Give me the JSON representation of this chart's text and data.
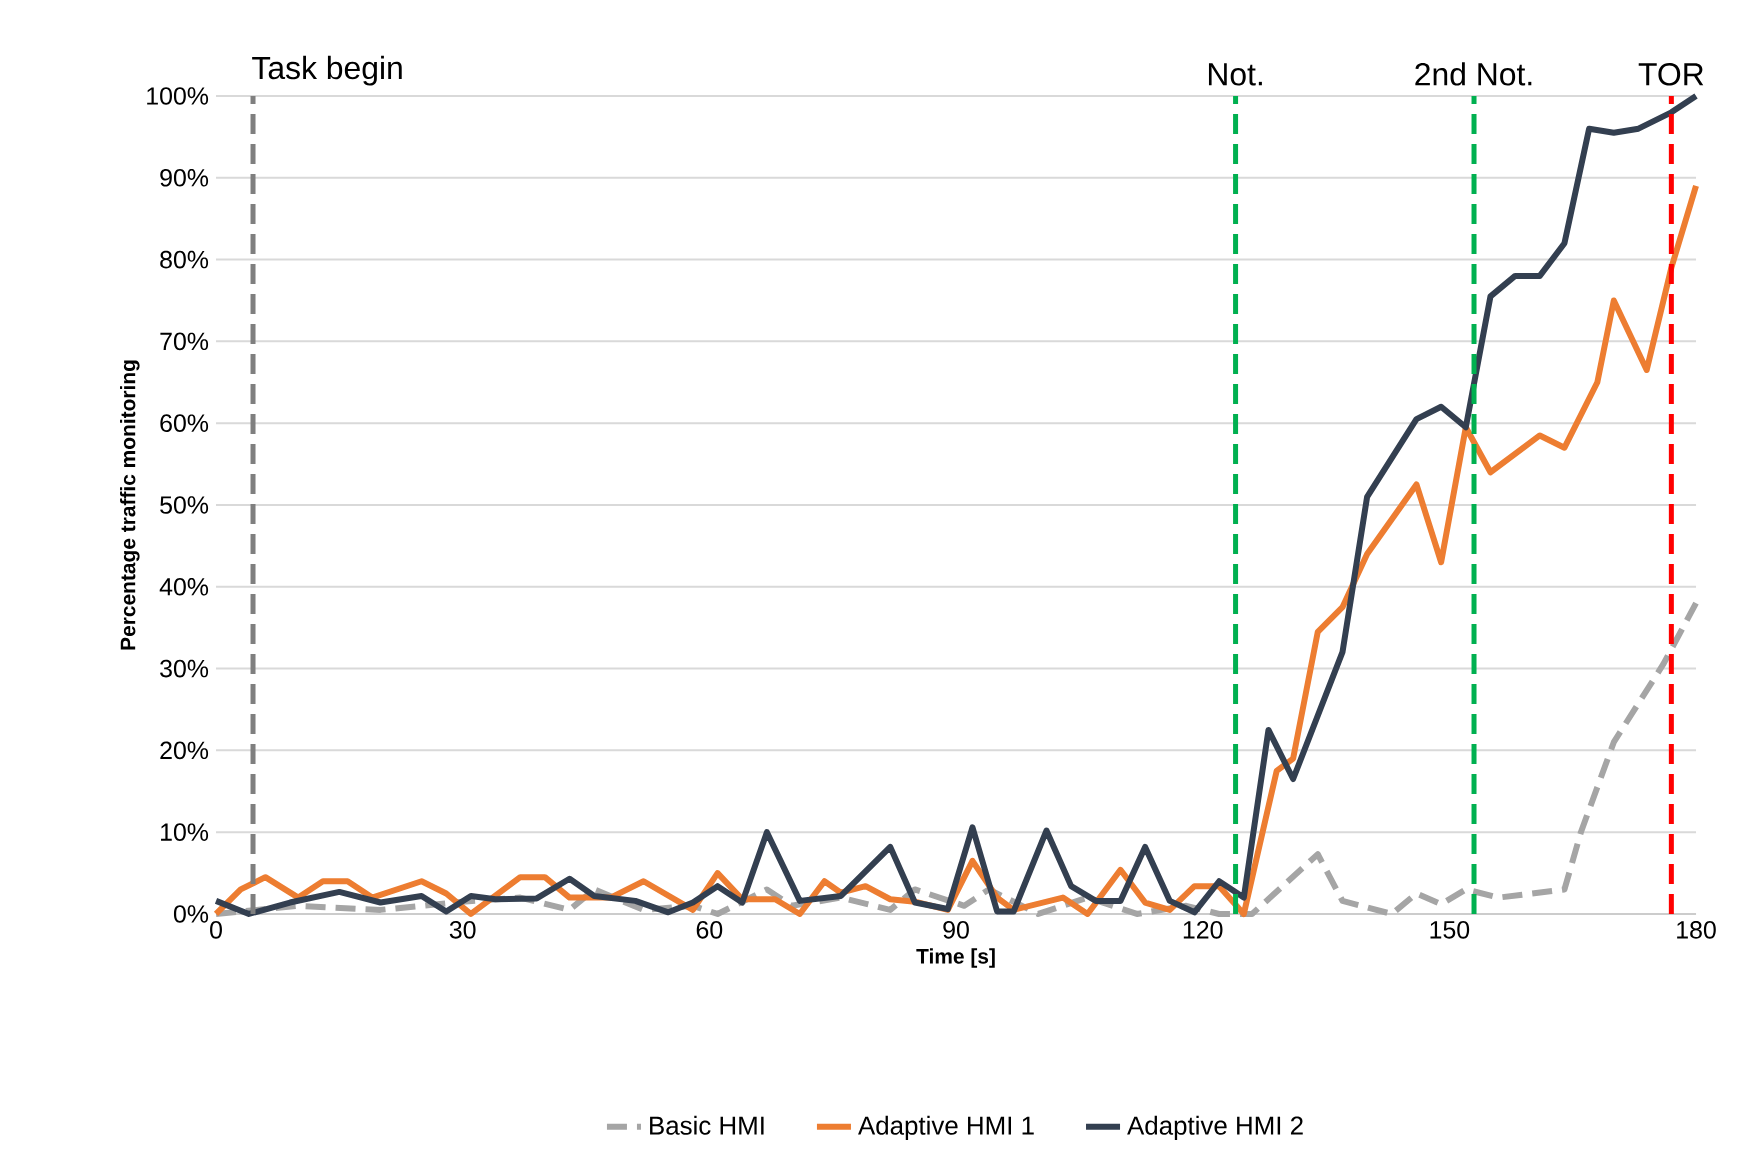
{
  "chart_data": {
    "type": "line",
    "xlabel": "Time [s]",
    "ylabel": "Percentage traffic monitoring",
    "xlim": [
      0,
      180
    ],
    "xticks": [
      0,
      30,
      60,
      90,
      120,
      150,
      180
    ],
    "ylim": [
      0,
      100
    ],
    "yticks": [
      {
        "value": 0,
        "label": "0%"
      },
      {
        "value": 10,
        "label": "10%"
      },
      {
        "value": 20,
        "label": "20%"
      },
      {
        "value": 30,
        "label": "30%"
      },
      {
        "value": 40,
        "label": "40%"
      },
      {
        "value": 50,
        "label": "50%"
      },
      {
        "value": 60,
        "label": "60%"
      },
      {
        "value": 70,
        "label": "70%"
      },
      {
        "value": 80,
        "label": "80%"
      },
      {
        "value": 90,
        "label": "90%"
      },
      {
        "value": 100,
        "label": "100%"
      }
    ],
    "grid": "y",
    "legend": "bottom",
    "ref_lines": [
      {
        "axis": "x",
        "value": 4.5,
        "label": "Task begin",
        "color": "#7f7f7f",
        "line_style": "dashed"
      },
      {
        "axis": "x",
        "value": 124,
        "label": "Not.",
        "color": "#00b050",
        "line_style": "dashed"
      },
      {
        "axis": "x",
        "value": 153,
        "label": "2nd Not.",
        "color": "#00b050",
        "line_style": "dashed"
      },
      {
        "axis": "x",
        "value": 177,
        "label": "TOR",
        "color": "#ff0000",
        "line_style": "dashed"
      }
    ],
    "series": [
      {
        "name": "Basic HMI",
        "color": "#a5a5a5",
        "line_style": "dashed",
        "x": [
          0,
          10,
          20,
          30,
          37,
          43,
          46,
          52,
          58,
          61,
          67,
          70,
          76,
          82,
          85,
          91,
          94,
          100,
          106,
          112,
          118,
          122,
          126,
          134,
          137,
          143,
          146,
          149,
          152,
          156,
          164,
          166,
          170,
          176,
          180
        ],
        "values": [
          0,
          1,
          0.5,
          1.5,
          2,
          0.5,
          3,
          0.5,
          1,
          0,
          3,
          1,
          2,
          0.5,
          3,
          1,
          3,
          0,
          2,
          0,
          1,
          0,
          0,
          7.3,
          1.6,
          0,
          2.5,
          1.2,
          3,
          2,
          3,
          10,
          21,
          30.5,
          38
        ]
      },
      {
        "name": "Adaptive HMI 1",
        "color": "#ed7d31",
        "x": [
          0,
          3,
          6,
          10,
          13,
          16,
          19,
          25,
          28,
          31,
          37,
          40,
          43,
          48,
          52,
          58,
          61,
          64,
          68,
          71,
          74,
          76,
          79,
          82,
          85,
          89,
          92,
          95,
          97,
          103,
          106,
          110,
          113,
          116,
          119,
          122,
          125,
          129,
          131,
          134,
          137,
          140,
          146,
          149,
          152,
          155,
          161,
          164,
          168,
          170,
          174,
          177,
          180
        ],
        "values": [
          0,
          3,
          4.5,
          2,
          4,
          4,
          2,
          4,
          2.5,
          0,
          4.5,
          4.5,
          2,
          2,
          4,
          0.5,
          5,
          1.8,
          1.8,
          0,
          4,
          2.6,
          3.4,
          1.8,
          1.5,
          0.5,
          6.5,
          2,
          0.5,
          2,
          0,
          5.4,
          1.4,
          0.5,
          3.4,
          3.4,
          0,
          17.5,
          19,
          34.5,
          37.5,
          44,
          52.5,
          43,
          59.5,
          54,
          58.5,
          57,
          65,
          75,
          66.5,
          79,
          89
        ]
      },
      {
        "name": "Adaptive HMI 2",
        "color": "#333f50",
        "x": [
          0,
          4,
          9,
          15,
          20,
          25,
          28,
          31,
          34,
          39,
          43,
          46,
          51,
          55,
          58,
          61,
          64,
          67,
          71,
          76,
          82,
          85,
          89,
          92,
          95,
          97,
          101,
          104,
          107,
          110,
          113,
          116,
          119,
          122,
          125,
          128,
          131,
          137,
          140,
          146,
          149,
          152,
          155,
          158,
          161,
          164,
          167,
          170,
          173,
          177,
          180
        ],
        "values": [
          1.6,
          0,
          1.4,
          2.7,
          1.4,
          2.2,
          0.3,
          2.2,
          1.8,
          1.9,
          4.3,
          2.2,
          1.6,
          0.2,
          1.4,
          3.4,
          1.4,
          10,
          1.6,
          2.2,
          8.2,
          1.4,
          0.6,
          10.6,
          0.3,
          0.3,
          10.2,
          3.4,
          1.6,
          1.6,
          8.2,
          1.6,
          0.2,
          4,
          2,
          22.5,
          16.5,
          32,
          51,
          60.5,
          62,
          59.5,
          75.5,
          78,
          78,
          82,
          96,
          95.5,
          96,
          98,
          100
        ]
      }
    ]
  }
}
